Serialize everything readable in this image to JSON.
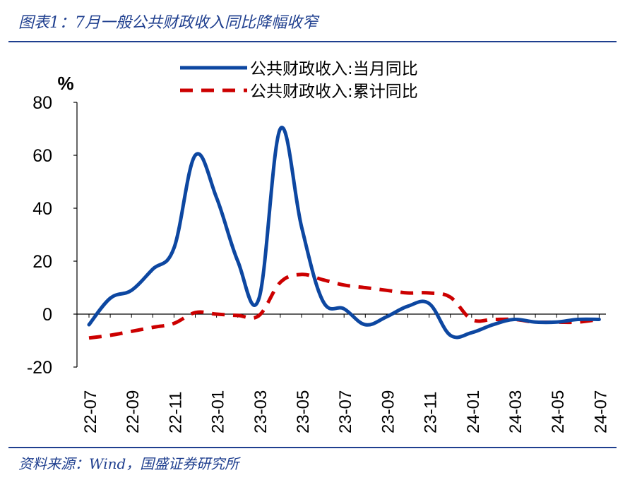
{
  "figure": {
    "title": "图表1：7月一般公共财政收入同比降幅收窄",
    "source": "资料来源：Wind，国盛证券研究所",
    "accent_color": "#1f3f8f"
  },
  "chart_data": {
    "type": "line",
    "ylabel": "%",
    "ylim": [
      -20,
      80
    ],
    "yticks": [
      -20,
      0,
      20,
      40,
      60,
      80
    ],
    "grid": false,
    "legend_position": "top-center",
    "x": [
      "22-07",
      "22-08",
      "22-09",
      "22-10",
      "22-11",
      "22-12",
      "23-01",
      "23-02",
      "23-03",
      "23-04",
      "23-05",
      "23-06",
      "23-07",
      "23-08",
      "23-09",
      "23-10",
      "23-11",
      "23-12",
      "24-01",
      "24-02",
      "24-03",
      "24-04",
      "24-05",
      "24-06",
      "24-07"
    ],
    "xticks": [
      "22-07",
      "22-09",
      "22-11",
      "23-01",
      "23-03",
      "23-05",
      "23-07",
      "23-09",
      "23-11",
      "24-01",
      "24-03",
      "24-05",
      "24-07"
    ],
    "series": [
      {
        "name": "公共财政收入:当月同比",
        "color": "#0d47a1",
        "style": "solid",
        "values": [
          -4,
          6,
          9,
          17,
          25,
          60,
          44,
          20,
          6,
          70,
          33,
          5,
          2,
          -4,
          -1,
          3,
          4,
          -8,
          -7,
          -4,
          -2,
          -3,
          -3,
          -2,
          -2
        ]
      },
      {
        "name": "公共财政收入:累计同比",
        "color": "#cc0000",
        "style": "dashed",
        "values": [
          -9,
          -8,
          -6.5,
          -5,
          -3.5,
          0.6,
          0,
          -0.5,
          -0.5,
          12,
          15,
          13,
          11,
          10,
          9,
          8,
          8,
          6.4,
          -2,
          -2,
          -2,
          -3,
          -3,
          -3,
          -2
        ]
      }
    ]
  }
}
